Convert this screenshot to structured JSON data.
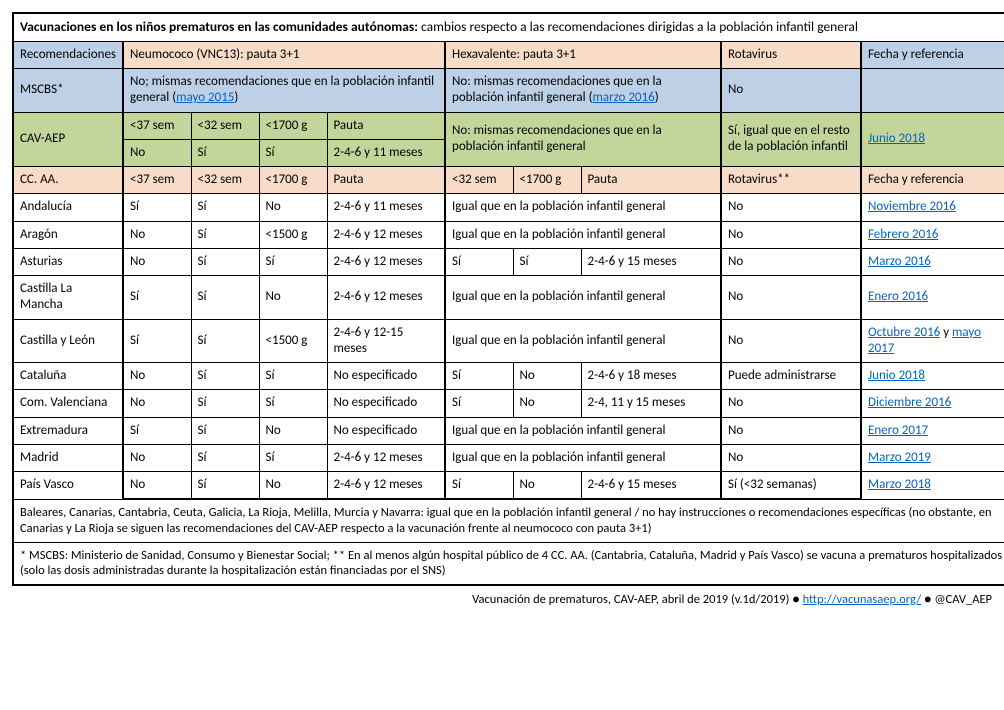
{
  "title_bold": "Vacunaciones en los niños prematuros en las comunidades autónomas:",
  "title_rest": " cambios respecto a las recomendaciones dirigidas a la población infantil general",
  "headers": {
    "recomendaciones": "Recomendaciones",
    "neumococo": "Neumococo (VNC13): pauta 3+1",
    "hexavalente": "Hexavalente: pauta 3+1",
    "rotavirus": "Rotavirus",
    "fecha": "Fecha y referencia"
  },
  "mscbs": {
    "label": "MSCBS*",
    "neumo_pre": "No; mismas recomendaciones que en la población infantil general (",
    "neumo_link": "mayo 2015",
    "neumo_post": ")",
    "hexa_pre": "No: mismas recomendaciones que en la población infantil general (",
    "hexa_link": "marzo 2016",
    "hexa_post": ")",
    "rota": "No",
    "ref": ""
  },
  "cavaep": {
    "label": "CAV-AEP",
    "n_h1": "<37 sem",
    "n_h2": "<32 sem",
    "n_h3": "<1700 g",
    "n_h4": "Pauta",
    "n_v1": "No",
    "n_v2": "Sí",
    "n_v3": "Sí",
    "n_v4": "2-4-6 y 11 meses",
    "hexa": "No: mismas recomendaciones que en la población infantil general",
    "rota": "Sí, igual que en el resto de la población infantil",
    "ref_link": "Junio 2018"
  },
  "ccaa_hdr": {
    "label": "CC. AA.",
    "n1": "<37 sem",
    "n2": "<32 sem",
    "n3": "<1700 g",
    "n4": "Pauta",
    "h1": "<32 sem",
    "h2": "<1700 g",
    "h3": "Pauta",
    "rota": "Rotavirus**",
    "ref": "Fecha y referencia"
  },
  "rows": [
    {
      "name": "Andalucía",
      "n1": "Sí",
      "n2": "Sí",
      "n3": "No",
      "n4": "2-4-6 y 11 meses",
      "hspan": true,
      "htxt": "Igual que en la población infantil general",
      "rota": "No",
      "ref": [
        {
          "t": "Noviembre 2016",
          "l": true
        }
      ]
    },
    {
      "name": "Aragón",
      "n1": "No",
      "n2": "Sí",
      "n3": "<1500 g",
      "n4": "2-4-6 y 12 meses",
      "hspan": true,
      "htxt": "Igual que en la población infantil general",
      "rota": "No",
      "ref": [
        {
          "t": "Febrero 2016",
          "l": true
        }
      ]
    },
    {
      "name": "Asturias",
      "n1": "No",
      "n2": "Sí",
      "n3": "Sí",
      "n4": "2-4-6 y 12 meses",
      "hspan": false,
      "h1": "Sí",
      "h2": "Sí",
      "h3": "2-4-6 y 15 meses",
      "rota": "No",
      "ref": [
        {
          "t": "Marzo 2016",
          "l": true
        }
      ]
    },
    {
      "name": "Castilla La Mancha",
      "n1": "Sí",
      "n2": "Sí",
      "n3": "No",
      "n4": "2-4-6 y 12 meses",
      "hspan": true,
      "htxt": "Igual que en la población infantil general",
      "rota": "No",
      "ref": [
        {
          "t": "Enero 2016",
          "l": true
        }
      ]
    },
    {
      "name": "Castilla y León",
      "n1": "Sí",
      "n2": "Sí",
      "n3": "<1500 g",
      "n4": "2-4-6 y 12-15 meses",
      "hspan": true,
      "htxt": "Igual que en la población infantil general",
      "rota": "No",
      "ref": [
        {
          "t": "Octubre 2016",
          "l": true
        },
        {
          "t": " y ",
          "l": false
        },
        {
          "t": "mayo 2017",
          "l": true
        }
      ]
    },
    {
      "name": "Cataluña",
      "n1": "No",
      "n2": "Sí",
      "n3": "Sí",
      "n4": "No especificado",
      "hspan": false,
      "h1": "Sí",
      "h2": "No",
      "h3": "2-4-6 y 18 meses",
      "rota": "Puede administrarse",
      "ref": [
        {
          "t": "Junio 2018",
          "l": true
        }
      ]
    },
    {
      "name": "Com. Valenciana",
      "n1": "No",
      "n2": "Sí",
      "n3": "Sí",
      "n4": "No especificado",
      "hspan": false,
      "h1": "Sí",
      "h2": "No",
      "h3": "2-4, 11 y 15 meses",
      "rota": "No",
      "ref": [
        {
          "t": "Diciembre 2016",
          "l": true
        }
      ]
    },
    {
      "name": "Extremadura",
      "n1": "Sí",
      "n2": "Sí",
      "n3": "No",
      "n4": "No especificado",
      "hspan": true,
      "htxt": "Igual que en la población infantil general",
      "rota": "No",
      "ref": [
        {
          "t": "Enero 2017",
          "l": true
        }
      ]
    },
    {
      "name": "Madrid",
      "n1": "No",
      "n2": "Sí",
      "n3": "Sí",
      "n4": "2-4-6 y 12 meses",
      "hspan": true,
      "htxt": "Igual que en la población infantil general",
      "rota": "No",
      "ref": [
        {
          "t": "Marzo 2019",
          "l": true
        }
      ]
    },
    {
      "name": "País Vasco",
      "n1": "No",
      "n2": "Sí",
      "n3": "No",
      "n4": "2-4-6 y 12 meses",
      "hspan": false,
      "h1": "Sí",
      "h2": "No",
      "h3": "2-4-6 y 15 meses",
      "rota": "Sí (<32 semanas)",
      "ref": [
        {
          "t": "Marzo 2018",
          "l": true
        }
      ]
    }
  ],
  "note1": "Baleares, Canarias, Cantabria, Ceuta, Galicia, La Rioja, Melilla, Murcia y Navarra: igual que en la población infantil general / no hay instrucciones o recomendaciones específicas (no obstante, en Canarias y La Rioja se siguen las recomendaciones del CAV-AEP respecto a la vacunación frente al neumococo con pauta 3+1)",
  "note2": "* MSCBS: Ministerio de Sanidad, Consumo y Bienestar Social; ** En al menos algún hospital público de 4 CC. AA. (Cantabria, Cataluña, Madrid y País Vasco) se vacuna a prematuros hospitalizados (solo las dosis administradas durante la hospitalización están financiadas por el SNS)",
  "footer_pre": "Vacunación de prematuros, CAV-AEP, abril de 2019 (v.1d/2019) ● ",
  "footer_link": "http://vacunasaep.org/",
  "footer_post": " ● @CAV_AEP"
}
